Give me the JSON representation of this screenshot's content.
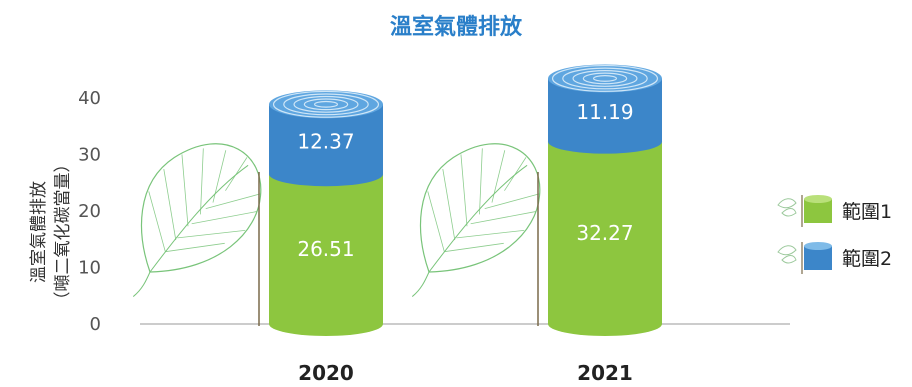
{
  "chart_data": {
    "type": "bar",
    "stacked": true,
    "title": "溫室氣體排放",
    "ylabel": "溫室氣體排放\n（噸二氧化碳當量）",
    "xlabel": "",
    "categories": [
      "2020",
      "2021"
    ],
    "ylim": [
      0,
      40
    ],
    "yticks": [
      0,
      10,
      20,
      30,
      40
    ],
    "grid": false,
    "legend_position": "right",
    "series": [
      {
        "name": "範圍1",
        "values": [
          26.51,
          32.27
        ],
        "color": "#8dc63f"
      },
      {
        "name": "範圍2",
        "values": [
          12.37,
          11.19
        ],
        "color": "#3c86c9"
      }
    ],
    "title_color": "#2a7fc9",
    "value_label_color": "#ffffff",
    "decoration": "leaf-outline-icon"
  }
}
